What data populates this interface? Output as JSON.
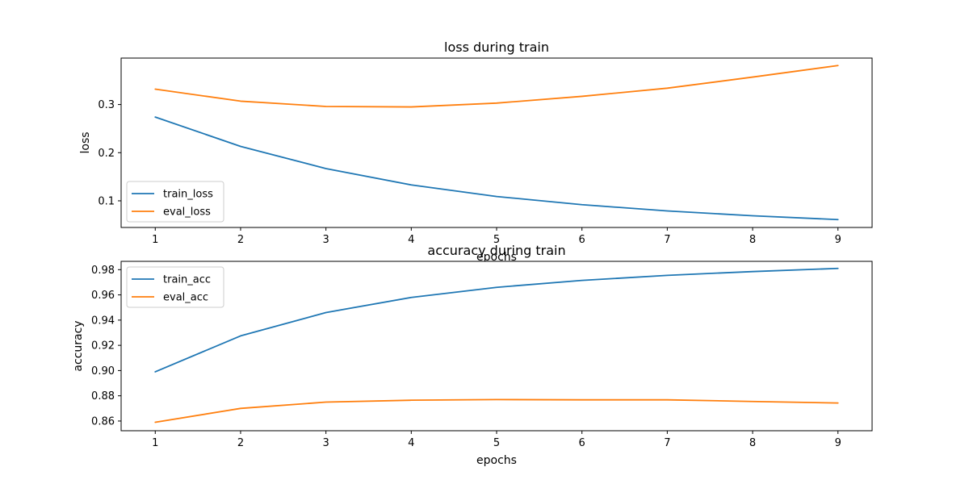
{
  "chart_data": [
    {
      "type": "line",
      "title": "loss during train",
      "xlabel": "epochs",
      "ylabel": "loss",
      "x": [
        1,
        2,
        3,
        4,
        5,
        6,
        7,
        8,
        9
      ],
      "xlim": [
        0.6,
        9.4
      ],
      "ylim": [
        0.04466,
        0.3965
      ],
      "xticks": [
        "1",
        "2",
        "3",
        "4",
        "5",
        "6",
        "7",
        "8",
        "9"
      ],
      "yticks": [
        0.1,
        0.2,
        0.3
      ],
      "ytick_labels": [
        "0.1",
        "0.2",
        "0.3"
      ],
      "grid": false,
      "legend_position": "lower-left",
      "series": [
        {
          "name": "train_loss",
          "color": "#1f77b4",
          "values": [
            0.274,
            0.213,
            0.167,
            0.133,
            0.109,
            0.092,
            0.079,
            0.069,
            0.061
          ]
        },
        {
          "name": "eval_loss",
          "color": "#ff7f0e",
          "values": [
            0.332,
            0.307,
            0.296,
            0.295,
            0.303,
            0.317,
            0.334,
            0.357,
            0.381
          ]
        }
      ]
    },
    {
      "type": "line",
      "title": "accuracy during train",
      "xlabel": "epochs",
      "ylabel": "accuracy",
      "x": [
        1,
        2,
        3,
        4,
        5,
        6,
        7,
        8,
        9
      ],
      "xlim": [
        0.6,
        9.4
      ],
      "ylim": [
        0.8523,
        0.9866
      ],
      "xticks": [
        "1",
        "2",
        "3",
        "4",
        "5",
        "6",
        "7",
        "8",
        "9"
      ],
      "yticks": [
        0.86,
        0.88,
        0.9,
        0.92,
        0.94,
        0.96,
        0.98
      ],
      "ytick_labels": [
        "0.86",
        "0.88",
        "0.90",
        "0.92",
        "0.94",
        "0.96",
        "0.98"
      ],
      "grid": false,
      "legend_position": "upper-left",
      "series": [
        {
          "name": "train_acc",
          "color": "#1f77b4",
          "values": [
            0.899,
            0.9275,
            0.946,
            0.958,
            0.966,
            0.9715,
            0.9755,
            0.9785,
            0.981
          ]
        },
        {
          "name": "eval_acc",
          "color": "#ff7f0e",
          "values": [
            0.859,
            0.87,
            0.875,
            0.8765,
            0.877,
            0.8768,
            0.8768,
            0.8755,
            0.8743
          ]
        }
      ]
    }
  ]
}
